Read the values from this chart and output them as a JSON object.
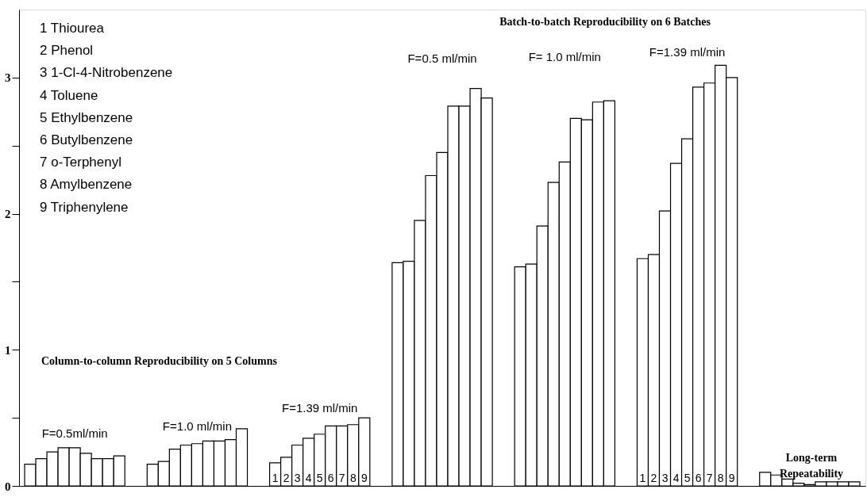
{
  "chart_data": {
    "type": "bar",
    "categories": [
      null,
      null,
      null,
      null,
      null,
      null,
      null,
      null,
      null,
      null,
      null,
      null,
      null,
      null,
      null,
      null,
      null,
      null,
      null,
      null,
      null,
      null,
      null,
      null,
      null,
      null,
      null,
      null,
      null,
      null,
      null,
      null,
      null,
      null,
      null,
      null,
      null,
      null,
      null,
      null,
      null,
      null,
      null,
      null,
      null,
      null,
      null,
      null,
      null,
      null,
      null,
      null,
      null,
      null,
      null,
      null,
      null,
      null,
      null,
      null,
      null,
      null,
      null,
      null,
      null,
      null,
      null,
      null,
      null,
      null,
      null,
      null,
      null,
      null,
      null
    ],
    "values": [
      0.16,
      0.2,
      0.25,
      0.28,
      0.28,
      0.24,
      0.2,
      0.2,
      0.22,
      null,
      null,
      0.16,
      0.18,
      0.27,
      0.3,
      0.31,
      0.33,
      0.33,
      0.34,
      0.42,
      null,
      null,
      0.17,
      0.21,
      0.3,
      0.35,
      0.38,
      0.44,
      0.44,
      0.45,
      0.5,
      null,
      null,
      1.64,
      1.65,
      1.95,
      2.28,
      2.45,
      2.79,
      2.79,
      2.92,
      2.85,
      null,
      null,
      1.61,
      1.63,
      1.91,
      2.23,
      2.38,
      2.7,
      2.69,
      2.82,
      2.83,
      null,
      null,
      1.67,
      1.7,
      2.02,
      2.37,
      2.55,
      2.93,
      2.96,
      3.09,
      3.0,
      null,
      null,
      0.1,
      0.08,
      0.05,
      0.02,
      0.01,
      0.03,
      0.03,
      0.03,
      0.03
    ],
    "color": "#ffffff",
    "ylim": [
      0,
      3.5
    ],
    "yticks": [
      0,
      {
        "value": 0.5,
        "label": null
      },
      1,
      {
        "value": 1.5,
        "label": null
      },
      2,
      {
        "value": 2.5,
        "label": null
      },
      3
    ],
    "tick_labels": "y",
    "grid": false,
    "annotations": [
      "Batch-to-batch Reproducibility on 6 Batches",
      "Column-to-column Reproducibility on 5 Columns",
      "Long-term\nRepeatability",
      "F=0.5ml/min",
      "F=1.0 ml/min",
      "F=1.39 ml/min",
      "F=0.5 ml/min",
      "F= 1.0 ml/min",
      "F=1.39 ml/min",
      "1 Thiourea",
      "2 Phenol",
      "3 1-Cl-4-Nitrobenzene",
      "4 Toluene",
      "5 Ethylbenzene",
      "6 Butylbenzene",
      "7 o-Terphenyl",
      "8 Amylbenzene",
      "9 Triphenylene",
      "1",
      "2",
      "3",
      "4",
      "5",
      "6",
      "7",
      "8",
      "9",
      "1",
      "2",
      "3",
      "4",
      "5",
      "6",
      "7",
      "8",
      "9"
    ]
  }
}
